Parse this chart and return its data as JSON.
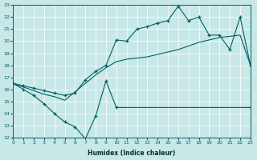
{
  "xlabel": "Humidex (Indice chaleur)",
  "ylabel": "",
  "bg_color": "#c8e8e8",
  "line_color": "#006060",
  "ylim": [
    12,
    23
  ],
  "xlim": [
    0,
    23
  ],
  "yticks": [
    12,
    13,
    14,
    15,
    16,
    17,
    18,
    19,
    20,
    21,
    22,
    23
  ],
  "xticks": [
    0,
    1,
    2,
    3,
    4,
    5,
    6,
    7,
    8,
    9,
    10,
    11,
    12,
    13,
    14,
    15,
    16,
    17,
    18,
    19,
    20,
    21,
    22,
    23
  ],
  "line1_x": [
    0,
    1,
    2,
    3,
    4,
    5,
    6,
    7,
    8,
    9,
    10,
    23
  ],
  "line1_y": [
    16.5,
    16.0,
    15.5,
    14.8,
    14.0,
    13.3,
    12.9,
    11.9,
    13.8,
    16.7,
    14.5,
    14.5
  ],
  "line2_x": [
    0,
    1,
    2,
    3,
    4,
    5,
    6,
    7,
    8,
    9,
    10,
    11,
    12,
    13,
    14,
    15,
    16,
    17,
    18,
    19,
    20,
    21,
    22,
    23
  ],
  "line2_y": [
    16.5,
    16.2,
    15.9,
    15.6,
    15.4,
    15.1,
    15.8,
    16.5,
    17.2,
    17.8,
    18.3,
    18.5,
    18.6,
    18.7,
    18.9,
    19.1,
    19.3,
    19.6,
    19.9,
    20.1,
    20.3,
    20.4,
    20.5,
    18.0
  ],
  "line3_x": [
    0,
    1,
    2,
    3,
    4,
    5,
    6,
    7,
    8,
    9,
    10,
    11,
    12,
    13,
    14,
    15,
    16,
    17,
    18,
    19,
    20,
    21,
    22,
    23
  ],
  "line3_y": [
    16.5,
    16.3,
    16.1,
    15.9,
    15.7,
    15.5,
    15.7,
    16.8,
    17.5,
    18.0,
    20.1,
    20.0,
    21.0,
    21.2,
    21.5,
    21.7,
    22.9,
    21.7,
    22.0,
    20.5,
    20.5,
    19.3,
    22.0,
    18.0
  ]
}
